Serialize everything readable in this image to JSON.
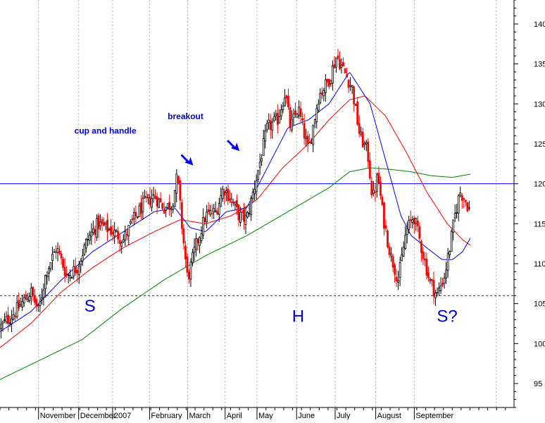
{
  "chart_data": {
    "type": "candlestick",
    "y_ticks": [
      95,
      100,
      105,
      110,
      115,
      120,
      125,
      130,
      135,
      140
    ],
    "ylim": [
      92,
      143
    ],
    "y_axis_position": "right",
    "grid": "vertical-dotted",
    "months": [
      {
        "label": "November",
        "start": 0.075
      },
      {
        "label": "December",
        "start": 0.153
      },
      {
        "label": "2007",
        "start": 0.219
      },
      {
        "label": "February",
        "start": 0.291
      },
      {
        "label": "March",
        "start": 0.365
      },
      {
        "label": "April",
        "start": 0.438
      },
      {
        "label": "May",
        "start": 0.5
      },
      {
        "label": "June",
        "start": 0.577
      },
      {
        "label": "July",
        "start": 0.652
      },
      {
        "label": "August",
        "start": 0.731
      },
      {
        "label": "September",
        "start": 0.806
      }
    ],
    "horizontal_lines": [
      {
        "value": 120,
        "style": "solid",
        "color": "#0000ff"
      },
      {
        "value": 106,
        "style": "dashed",
        "color": "#333333"
      }
    ],
    "price_anchors": [
      [
        0.0,
        102
      ],
      [
        0.03,
        104
      ],
      [
        0.06,
        106.5
      ],
      [
        0.075,
        104
      ],
      [
        0.09,
        109
      ],
      [
        0.11,
        112
      ],
      [
        0.13,
        108.5
      ],
      [
        0.15,
        109.5
      ],
      [
        0.17,
        113
      ],
      [
        0.19,
        115
      ],
      [
        0.22,
        114
      ],
      [
        0.24,
        113
      ],
      [
        0.26,
        115.5
      ],
      [
        0.28,
        117.5
      ],
      [
        0.3,
        118.5
      ],
      [
        0.32,
        117
      ],
      [
        0.335,
        117.5
      ],
      [
        0.345,
        121
      ],
      [
        0.355,
        114
      ],
      [
        0.365,
        108
      ],
      [
        0.38,
        112
      ],
      [
        0.4,
        116
      ],
      [
        0.42,
        116.5
      ],
      [
        0.435,
        119.5
      ],
      [
        0.45,
        118
      ],
      [
        0.465,
        116
      ],
      [
        0.48,
        115.5
      ],
      [
        0.5,
        121
      ],
      [
        0.52,
        127
      ],
      [
        0.54,
        128
      ],
      [
        0.555,
        131.5
      ],
      [
        0.565,
        127
      ],
      [
        0.58,
        129.5
      ],
      [
        0.6,
        124
      ],
      [
        0.62,
        131
      ],
      [
        0.64,
        133
      ],
      [
        0.655,
        136
      ],
      [
        0.67,
        134
      ],
      [
        0.685,
        132
      ],
      [
        0.7,
        126
      ],
      [
        0.715,
        124
      ],
      [
        0.725,
        118
      ],
      [
        0.735,
        121
      ],
      [
        0.745,
        116
      ],
      [
        0.76,
        111
      ],
      [
        0.775,
        108
      ],
      [
        0.79,
        114
      ],
      [
        0.805,
        116
      ],
      [
        0.82,
        112
      ],
      [
        0.835,
        108
      ],
      [
        0.85,
        106
      ],
      [
        0.865,
        108.5
      ],
      [
        0.875,
        112
      ],
      [
        0.885,
        116
      ],
      [
        0.895,
        119
      ],
      [
        0.905,
        118
      ],
      [
        0.915,
        116.5
      ]
    ],
    "ma_short_anchors": [
      [
        0.0,
        101.5
      ],
      [
        0.06,
        104
      ],
      [
        0.12,
        108
      ],
      [
        0.18,
        111.5
      ],
      [
        0.24,
        114
      ],
      [
        0.3,
        116.5
      ],
      [
        0.34,
        117
      ],
      [
        0.37,
        114.5
      ],
      [
        0.4,
        114
      ],
      [
        0.44,
        116.5
      ],
      [
        0.48,
        117
      ],
      [
        0.52,
        122
      ],
      [
        0.56,
        127
      ],
      [
        0.6,
        128
      ],
      [
        0.64,
        130
      ],
      [
        0.68,
        134
      ],
      [
        0.72,
        130
      ],
      [
        0.75,
        123
      ],
      [
        0.78,
        116
      ],
      [
        0.8,
        113.5
      ],
      [
        0.83,
        112
      ],
      [
        0.86,
        110.5
      ],
      [
        0.88,
        110.5
      ],
      [
        0.9,
        111.5
      ],
      [
        0.915,
        113.2
      ]
    ],
    "ma_mid_anchors": [
      [
        0.0,
        99.5
      ],
      [
        0.06,
        102.5
      ],
      [
        0.12,
        106.5
      ],
      [
        0.18,
        109.5
      ],
      [
        0.24,
        112
      ],
      [
        0.3,
        114
      ],
      [
        0.35,
        115.5
      ],
      [
        0.4,
        115
      ],
      [
        0.45,
        116
      ],
      [
        0.5,
        118
      ],
      [
        0.55,
        122
      ],
      [
        0.6,
        125
      ],
      [
        0.64,
        128
      ],
      [
        0.68,
        130.5
      ],
      [
        0.71,
        131
      ],
      [
        0.75,
        128.5
      ],
      [
        0.79,
        124
      ],
      [
        0.83,
        119
      ],
      [
        0.87,
        115
      ],
      [
        0.9,
        113
      ],
      [
        0.915,
        112.3
      ]
    ],
    "ma_long_anchors": [
      [
        0.0,
        95.5
      ],
      [
        0.08,
        98
      ],
      [
        0.16,
        100.5
      ],
      [
        0.24,
        104.5
      ],
      [
        0.32,
        108
      ],
      [
        0.4,
        111
      ],
      [
        0.48,
        113.5
      ],
      [
        0.56,
        116.5
      ],
      [
        0.64,
        119.5
      ],
      [
        0.68,
        121.5
      ],
      [
        0.72,
        122
      ],
      [
        0.76,
        121.8
      ],
      [
        0.8,
        121.5
      ],
      [
        0.84,
        121
      ],
      [
        0.88,
        120.8
      ],
      [
        0.915,
        121.2
      ]
    ],
    "annotations": [
      {
        "text": "cup and handle",
        "x": 0.205,
        "y": 126.3,
        "color": "#0000cc",
        "weight": "bold",
        "size": "small"
      },
      {
        "text": "breakout",
        "x": 0.361,
        "y": 128.1,
        "color": "#0000cc",
        "weight": "bold",
        "size": "small"
      },
      {
        "text": "S",
        "x": 0.175,
        "y": 104.0,
        "color": "#0000cc",
        "weight": "normal",
        "size": "large"
      },
      {
        "text": "H",
        "x": 0.58,
        "y": 102.7,
        "color": "#0000cc",
        "weight": "normal",
        "size": "large"
      },
      {
        "text": "S?",
        "x": 0.87,
        "y": 102.7,
        "color": "#0000cc",
        "weight": "normal",
        "size": "large"
      }
    ],
    "arrows": [
      {
        "name": "arrow-cup-handle",
        "x": 0.365,
        "y": 123.0
      },
      {
        "name": "arrow-breakout",
        "x": 0.455,
        "y": 124.8
      }
    ],
    "colors": {
      "up_candle": "#000000",
      "down_candle": "#ff0000",
      "ma_short": "#0000ff",
      "ma_mid": "#ff0000",
      "ma_long": "#008000",
      "axis": "#000000",
      "grid": "#b0b0b0"
    }
  }
}
